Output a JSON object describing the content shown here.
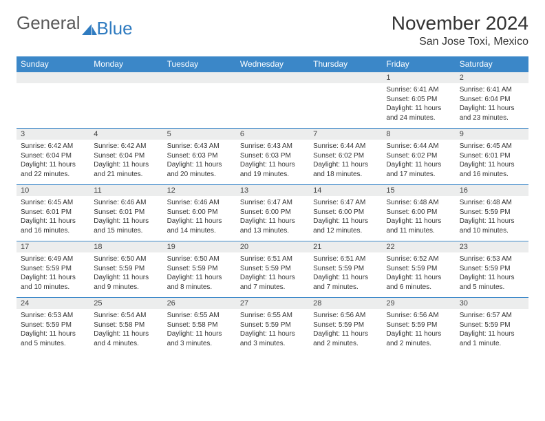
{
  "brand": {
    "part1": "General",
    "part2": "Blue",
    "color_general": "#5a5a5a",
    "color_blue": "#2f7bc0"
  },
  "title": "November 2024",
  "location": "San Jose Toxi, Mexico",
  "header_bg": "#3b87c8",
  "daynum_bg": "#eceded",
  "text_color": "#333333",
  "days": [
    "Sunday",
    "Monday",
    "Tuesday",
    "Wednesday",
    "Thursday",
    "Friday",
    "Saturday"
  ],
  "weeks": [
    [
      null,
      null,
      null,
      null,
      null,
      {
        "n": "1",
        "sunrise": "6:41 AM",
        "sunset": "6:05 PM",
        "daylight": "11 hours and 24 minutes."
      },
      {
        "n": "2",
        "sunrise": "6:41 AM",
        "sunset": "6:04 PM",
        "daylight": "11 hours and 23 minutes."
      }
    ],
    [
      {
        "n": "3",
        "sunrise": "6:42 AM",
        "sunset": "6:04 PM",
        "daylight": "11 hours and 22 minutes."
      },
      {
        "n": "4",
        "sunrise": "6:42 AM",
        "sunset": "6:04 PM",
        "daylight": "11 hours and 21 minutes."
      },
      {
        "n": "5",
        "sunrise": "6:43 AM",
        "sunset": "6:03 PM",
        "daylight": "11 hours and 20 minutes."
      },
      {
        "n": "6",
        "sunrise": "6:43 AM",
        "sunset": "6:03 PM",
        "daylight": "11 hours and 19 minutes."
      },
      {
        "n": "7",
        "sunrise": "6:44 AM",
        "sunset": "6:02 PM",
        "daylight": "11 hours and 18 minutes."
      },
      {
        "n": "8",
        "sunrise": "6:44 AM",
        "sunset": "6:02 PM",
        "daylight": "11 hours and 17 minutes."
      },
      {
        "n": "9",
        "sunrise": "6:45 AM",
        "sunset": "6:01 PM",
        "daylight": "11 hours and 16 minutes."
      }
    ],
    [
      {
        "n": "10",
        "sunrise": "6:45 AM",
        "sunset": "6:01 PM",
        "daylight": "11 hours and 16 minutes."
      },
      {
        "n": "11",
        "sunrise": "6:46 AM",
        "sunset": "6:01 PM",
        "daylight": "11 hours and 15 minutes."
      },
      {
        "n": "12",
        "sunrise": "6:46 AM",
        "sunset": "6:00 PM",
        "daylight": "11 hours and 14 minutes."
      },
      {
        "n": "13",
        "sunrise": "6:47 AM",
        "sunset": "6:00 PM",
        "daylight": "11 hours and 13 minutes."
      },
      {
        "n": "14",
        "sunrise": "6:47 AM",
        "sunset": "6:00 PM",
        "daylight": "11 hours and 12 minutes."
      },
      {
        "n": "15",
        "sunrise": "6:48 AM",
        "sunset": "6:00 PM",
        "daylight": "11 hours and 11 minutes."
      },
      {
        "n": "16",
        "sunrise": "6:48 AM",
        "sunset": "5:59 PM",
        "daylight": "11 hours and 10 minutes."
      }
    ],
    [
      {
        "n": "17",
        "sunrise": "6:49 AM",
        "sunset": "5:59 PM",
        "daylight": "11 hours and 10 minutes."
      },
      {
        "n": "18",
        "sunrise": "6:50 AM",
        "sunset": "5:59 PM",
        "daylight": "11 hours and 9 minutes."
      },
      {
        "n": "19",
        "sunrise": "6:50 AM",
        "sunset": "5:59 PM",
        "daylight": "11 hours and 8 minutes."
      },
      {
        "n": "20",
        "sunrise": "6:51 AM",
        "sunset": "5:59 PM",
        "daylight": "11 hours and 7 minutes."
      },
      {
        "n": "21",
        "sunrise": "6:51 AM",
        "sunset": "5:59 PM",
        "daylight": "11 hours and 7 minutes."
      },
      {
        "n": "22",
        "sunrise": "6:52 AM",
        "sunset": "5:59 PM",
        "daylight": "11 hours and 6 minutes."
      },
      {
        "n": "23",
        "sunrise": "6:53 AM",
        "sunset": "5:59 PM",
        "daylight": "11 hours and 5 minutes."
      }
    ],
    [
      {
        "n": "24",
        "sunrise": "6:53 AM",
        "sunset": "5:59 PM",
        "daylight": "11 hours and 5 minutes."
      },
      {
        "n": "25",
        "sunrise": "6:54 AM",
        "sunset": "5:58 PM",
        "daylight": "11 hours and 4 minutes."
      },
      {
        "n": "26",
        "sunrise": "6:55 AM",
        "sunset": "5:58 PM",
        "daylight": "11 hours and 3 minutes."
      },
      {
        "n": "27",
        "sunrise": "6:55 AM",
        "sunset": "5:59 PM",
        "daylight": "11 hours and 3 minutes."
      },
      {
        "n": "28",
        "sunrise": "6:56 AM",
        "sunset": "5:59 PM",
        "daylight": "11 hours and 2 minutes."
      },
      {
        "n": "29",
        "sunrise": "6:56 AM",
        "sunset": "5:59 PM",
        "daylight": "11 hours and 2 minutes."
      },
      {
        "n": "30",
        "sunrise": "6:57 AM",
        "sunset": "5:59 PM",
        "daylight": "11 hours and 1 minute."
      }
    ]
  ]
}
